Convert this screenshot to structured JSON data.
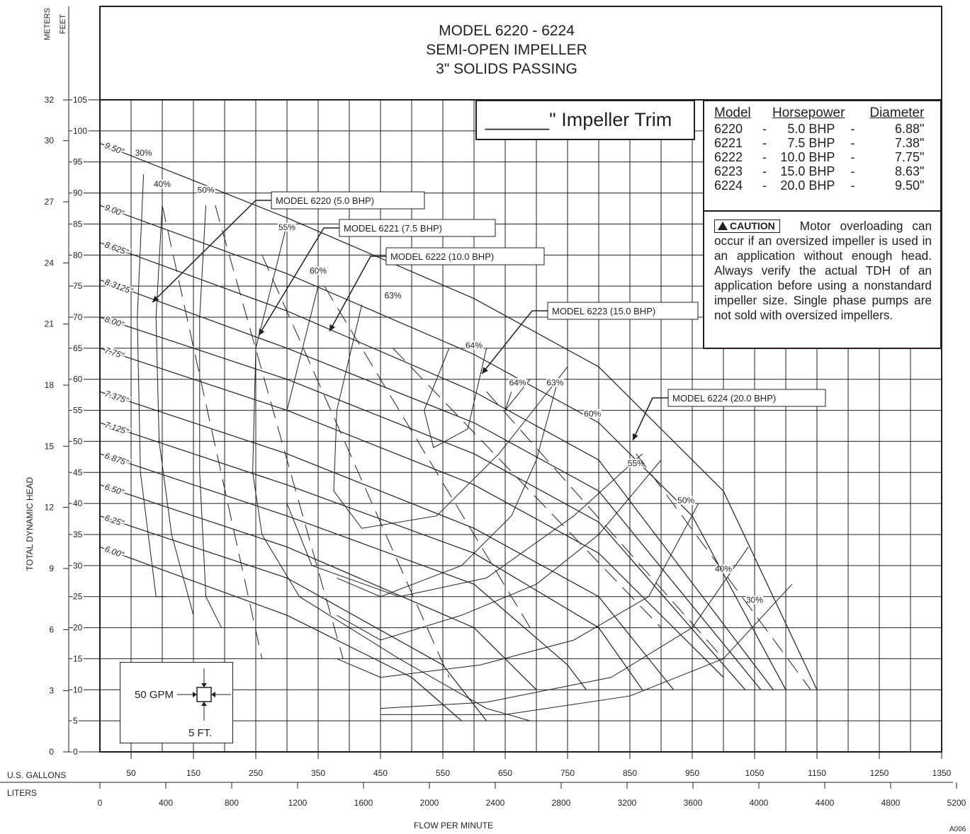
{
  "chart_data": {
    "type": "line",
    "title": [
      "MODEL 6220 - 6224",
      "SEMI-OPEN IMPELLER",
      "3\" SOLIDS PASSING"
    ],
    "xlabel": "FLOW PER MINUTE",
    "ylabel": "TOTAL DYNAMIC HEAD",
    "x_axis_gpm": {
      "name": "U.S. GALLONS",
      "range": [
        0,
        1350
      ],
      "ticks": [
        "50",
        "150",
        "250",
        "350",
        "450",
        "550",
        "650",
        "750",
        "850",
        "950",
        "1050",
        "1150",
        "1250",
        "1350"
      ]
    },
    "x_axis_liters": {
      "name": "LITERS",
      "ticks": [
        "0",
        "400",
        "800",
        "1200",
        "1600",
        "2000",
        "2400",
        "2800",
        "3200",
        "3600",
        "4000",
        "4400",
        "4800",
        "5200"
      ]
    },
    "y_axis_feet": {
      "name": "FEET",
      "range": [
        0,
        105
      ],
      "ticks": [
        "0",
        "5",
        "10",
        "15",
        "20",
        "25",
        "30",
        "35",
        "40",
        "45",
        "50",
        "55",
        "60",
        "65",
        "70",
        "75",
        "80",
        "85",
        "90",
        "95",
        "100",
        "105"
      ]
    },
    "y_axis_meters": {
      "name": "METERS",
      "ticks": [
        "0",
        "3",
        "6",
        "9",
        "12",
        "15",
        "18",
        "21",
        "24",
        "27",
        "30",
        "32"
      ]
    },
    "grid": true,
    "impeller_curves": [
      {
        "name": "9.50\"",
        "points": [
          [
            0,
            98
          ],
          [
            300,
            86
          ],
          [
            600,
            73
          ],
          [
            800,
            62
          ],
          [
            1000,
            42
          ],
          [
            1150,
            10
          ]
        ]
      },
      {
        "name": "9.00\"",
        "points": [
          [
            0,
            88
          ],
          [
            300,
            77
          ],
          [
            600,
            64
          ],
          [
            800,
            53
          ],
          [
            950,
            38
          ],
          [
            1100,
            10
          ]
        ]
      },
      {
        "name": "8.625\"",
        "points": [
          [
            0,
            82
          ],
          [
            300,
            71
          ],
          [
            600,
            58
          ],
          [
            800,
            47
          ],
          [
            1080,
            10
          ]
        ]
      },
      {
        "name": "8.3125\"",
        "points": [
          [
            0,
            76
          ],
          [
            300,
            65
          ],
          [
            600,
            53
          ],
          [
            800,
            42
          ],
          [
            1060,
            10
          ]
        ]
      },
      {
        "name": "8.00\"",
        "points": [
          [
            0,
            70
          ],
          [
            300,
            60
          ],
          [
            600,
            48
          ],
          [
            800,
            37
          ],
          [
            1035,
            10
          ]
        ]
      },
      {
        "name": "7.75\"",
        "points": [
          [
            0,
            65
          ],
          [
            300,
            55
          ],
          [
            600,
            43
          ],
          [
            800,
            32
          ],
          [
            1000,
            12
          ]
        ]
      },
      {
        "name": "7.375\"",
        "points": [
          [
            0,
            58
          ],
          [
            300,
            48
          ],
          [
            600,
            36
          ],
          [
            800,
            25
          ],
          [
            920,
            10
          ]
        ]
      },
      {
        "name": "7.125\"",
        "points": [
          [
            0,
            53
          ],
          [
            300,
            43
          ],
          [
            600,
            32
          ],
          [
            800,
            20
          ],
          [
            870,
            10
          ]
        ]
      },
      {
        "name": "6.875\"",
        "points": [
          [
            0,
            48
          ],
          [
            300,
            38
          ],
          [
            600,
            27
          ],
          [
            750,
            14
          ],
          [
            780,
            10
          ]
        ]
      },
      {
        "name": "6.50\"",
        "points": [
          [
            0,
            43
          ],
          [
            300,
            33
          ],
          [
            600,
            20
          ],
          [
            700,
            10
          ]
        ]
      },
      {
        "name": "6.25\"",
        "points": [
          [
            0,
            38
          ],
          [
            300,
            28
          ],
          [
            550,
            14
          ],
          [
            620,
            5
          ]
        ]
      },
      {
        "name": "6.00\"",
        "points": [
          [
            0,
            33
          ],
          [
            300,
            22
          ],
          [
            500,
            12
          ],
          [
            580,
            5
          ]
        ]
      }
    ],
    "efficiency_labels": [
      "30%",
      "40%",
      "50%",
      "55%",
      "60%",
      "63%",
      "64%",
      "64%",
      "63%",
      "60%",
      "55%",
      "50%",
      "40%",
      "30%"
    ],
    "model_limit_labels": [
      "MODEL 6220 (5.0 BHP)",
      "MODEL 6221 (7.5 BHP)",
      "MODEL 6222 (10.0 BHP)",
      "MODEL 6223 (15.0 BHP)",
      "MODEL 6224 (20.0 BHP)"
    ],
    "legend_position": "top-right"
  },
  "trim_box": {
    "blank": "______",
    "label": "\" Impeller Trim"
  },
  "model_table": {
    "headers": [
      "Model",
      "Horsepower",
      "Diameter"
    ],
    "rows": [
      [
        "6220",
        "-",
        "5.0 BHP",
        "-",
        "6.88\""
      ],
      [
        "6221",
        "-",
        "7.5 BHP",
        "-",
        "7.38\""
      ],
      [
        "6222",
        "-",
        "10.0 BHP",
        "-",
        "7.75\""
      ],
      [
        "6223",
        "-",
        "15.0 BHP",
        "-",
        "8.63\""
      ],
      [
        "6224",
        "-",
        "20.0 BHP",
        "-",
        "9.50\""
      ]
    ]
  },
  "caution": {
    "badge": "CAUTION",
    "text": "Motor overloading can occur if an oversized impeller is used in an application without enough head. Always verify the actual TDH of an application before using a nonstandard impeller size. Single phase pumps are not sold with oversized impellers."
  },
  "scale_legend": {
    "gpm": "50 GPM",
    "ft": "5 FT."
  },
  "corner_code": "A006"
}
